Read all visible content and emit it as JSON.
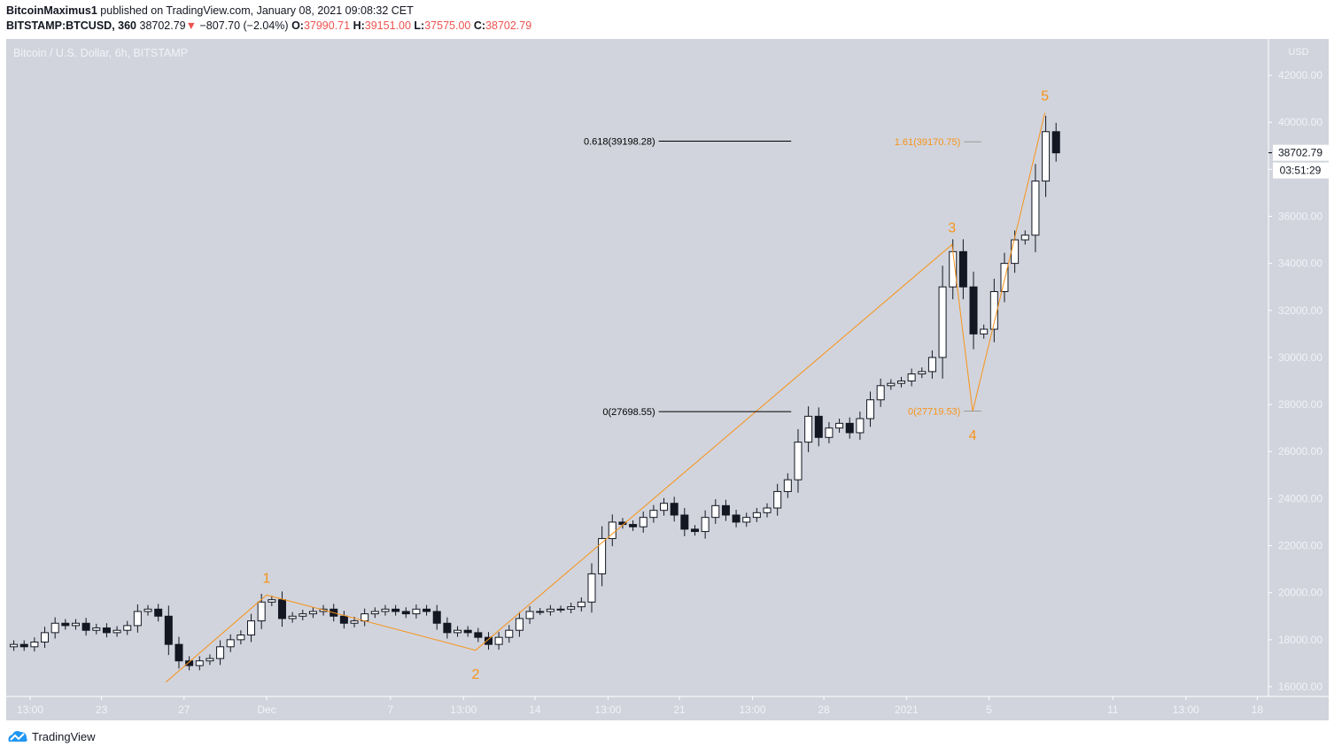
{
  "header": {
    "author": "BitcoinMaximus1",
    "published_text": "published on TradingView.com, January 08, 2021 09:08:32 CET",
    "symbol": "BITSTAMP:BTCUSD, 360",
    "last": "38702.79",
    "change_icon": "triangle-down-icon",
    "change": "−807.70 (−2.04%)",
    "o_label": "O:",
    "o": "37990.71",
    "h_label": "H:",
    "h": "39151.00",
    "l_label": "L:",
    "l": "37575.00",
    "c_label": "C:",
    "c": "38702.79"
  },
  "chart_title": "Bitcoin / U.S. Dollar, 6h, BITSTAMP",
  "currency": "USD",
  "last_price_label": "38702.79",
  "countdown": "03:51:29",
  "footer": {
    "brand": "TradingView"
  },
  "colors": {
    "background": "#d1d4dc",
    "up": "#ffffff",
    "down": "#131722",
    "wave": "#f7931a",
    "fib_black": "#000000",
    "price_red": "#ef5350"
  },
  "chart_data": {
    "type": "candlestick",
    "interval": "12h (approximate reading of 6h chart)",
    "start": "2020-11-18T12:00",
    "closes": [
      17800,
      17700,
      17900,
      18300,
      18700,
      18600,
      18700,
      18400,
      18500,
      18300,
      18400,
      18600,
      19200,
      19300,
      19000,
      17800,
      17100,
      16900,
      17100,
      17200,
      17700,
      18000,
      18200,
      18800,
      19600,
      19700,
      18900,
      19000,
      19100,
      19200,
      19300,
      19000,
      18700,
      18800,
      19100,
      19200,
      19300,
      19200,
      19100,
      19300,
      19200,
      18700,
      18300,
      18400,
      18300,
      18100,
      17800,
      18100,
      18400,
      18900,
      19200,
      19200,
      19300,
      19300,
      19400,
      19600,
      20800,
      22300,
      23000,
      22900,
      22800,
      23200,
      23500,
      23800,
      23300,
      22700,
      22600,
      23200,
      23700,
      23300,
      23000,
      23200,
      23400,
      23600,
      24300,
      24800,
      26400,
      27500,
      26600,
      27000,
      27200,
      26800,
      27400,
      28200,
      28800,
      28900,
      29000,
      29300,
      29400,
      30000,
      33000,
      34500,
      33000,
      31000,
      31200,
      32800,
      34000,
      35000,
      35200,
      37500,
      39600,
      38700
    ],
    "y_ticks": [
      16000,
      18000,
      20000,
      22000,
      24000,
      26000,
      28000,
      30000,
      32000,
      34000,
      36000,
      38000,
      40000,
      42000
    ],
    "ylim": [
      16000,
      42000
    ],
    "x_ticks": [
      {
        "label": "13:00",
        "date": "2020-11-19T13:00"
      },
      {
        "label": "23",
        "date": "2020-11-23T00:00"
      },
      {
        "label": "27",
        "date": "2020-11-27T00:00"
      },
      {
        "label": "Dec",
        "date": "2020-12-01T00:00"
      },
      {
        "label": "7",
        "date": "2020-12-07T00:00"
      },
      {
        "label": "13:00",
        "date": "2020-12-10T13:00"
      },
      {
        "label": "14",
        "date": "2020-12-14T00:00"
      },
      {
        "label": "13:00",
        "date": "2020-12-17T13:00"
      },
      {
        "label": "21",
        "date": "2020-12-21T00:00"
      },
      {
        "label": "13:00",
        "date": "2020-12-24T13:00"
      },
      {
        "label": "28",
        "date": "2020-12-28T00:00"
      },
      {
        "label": "2021",
        "date": "2021-01-01T00:00"
      },
      {
        "label": "5",
        "date": "2021-01-05T00:00"
      },
      {
        "label": "11",
        "date": "2021-01-11T00:00"
      },
      {
        "label": "13:00",
        "date": "2021-01-14T13:00"
      },
      {
        "label": "18",
        "date": "2021-01-18T00:00"
      }
    ],
    "wave_points": [
      {
        "label": "",
        "date": "2020-11-26T03:00",
        "price": 16200
      },
      {
        "label": "1",
        "date": "2020-12-01T00:00",
        "price": 19900
      },
      {
        "label": "2",
        "date": "2020-12-11T03:00",
        "price": 17550
      },
      {
        "label": "3",
        "date": "2021-01-03T05:00",
        "price": 34800
      },
      {
        "label": "4",
        "date": "2021-01-04T05:00",
        "price": 27700
      },
      {
        "label": "5",
        "date": "2021-01-07T17:00",
        "price": 40400
      }
    ],
    "fib_levels": [
      {
        "text": "0.618(39198.28)",
        "price": 39198.28,
        "from": "2020-12-20T00:00",
        "to": "2020-12-26T10:00",
        "color": "#000000"
      },
      {
        "text": "0(27698.55)",
        "price": 27698.55,
        "from": "2020-12-20T00:00",
        "to": "2020-12-26T10:00",
        "color": "#000000"
      },
      {
        "text": "1.61(39170.75)",
        "price": 39170.75,
        "from": "2021-01-03T19:00",
        "to": "2021-01-04T15:00",
        "color": "#f7931a"
      },
      {
        "text": "0(27719.53)",
        "price": 27719.53,
        "from": "2021-01-03T19:00",
        "to": "2021-01-04T15:00",
        "color": "#f7931a"
      }
    ]
  }
}
